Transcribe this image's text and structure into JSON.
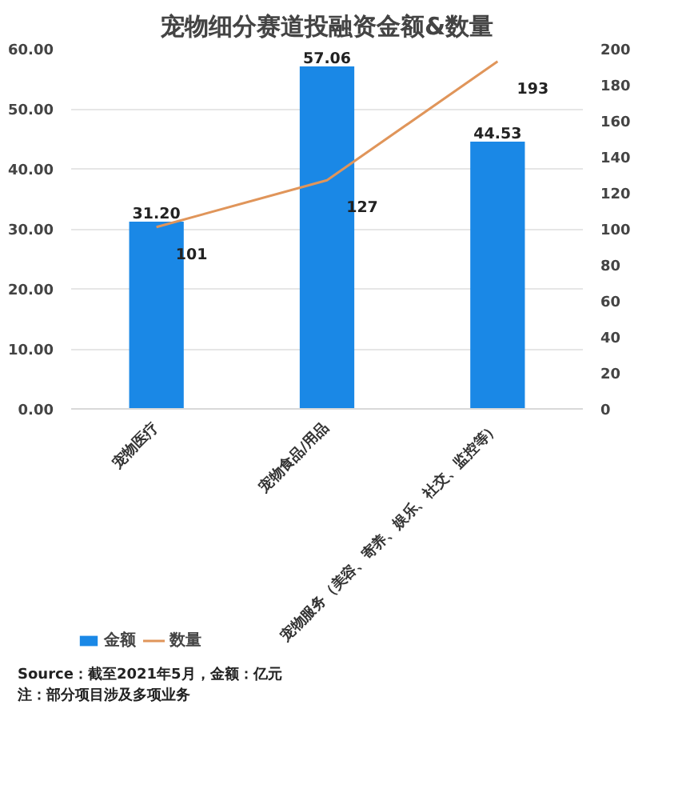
{
  "chart_data": {
    "type": "bar",
    "title": "宠物细分赛道投融资金额&数量",
    "categories": [
      "宠物医疗",
      "宠物食品/用品",
      "宠物服务（美容、寄养、娱乐、社交、监控等）"
    ],
    "series": [
      {
        "name": "金额",
        "color": "#1a88e6",
        "values": [
          31.2,
          57.06,
          44.53
        ],
        "value_labels": [
          "31.20",
          "57.06",
          "44.53"
        ]
      },
      {
        "name": "数量",
        "type": "line",
        "axis": "y2",
        "color": "#e0955a",
        "values": [
          101,
          127,
          193
        ],
        "value_labels": [
          "101",
          "127",
          "193"
        ]
      }
    ],
    "ylim": [
      0,
      60
    ],
    "yticks": [
      {
        "value": 0,
        "label": "0.00"
      },
      {
        "value": 10,
        "label": "10.00"
      },
      {
        "value": 20,
        "label": "20.00"
      },
      {
        "value": 30,
        "label": "30.00"
      },
      {
        "value": 40,
        "label": "40.00"
      },
      {
        "value": 50,
        "label": "50.00"
      },
      {
        "value": 60,
        "label": "60.00"
      }
    ],
    "y2lim": [
      0,
      200
    ],
    "y2ticks": [
      0,
      20,
      40,
      60,
      80,
      100,
      120,
      140,
      160,
      180,
      200
    ],
    "grid": "y",
    "legend": "bottom left",
    "annotations": [
      "Source：截至2021年5月，金额：亿元",
      "注：部分项目涉及多项业务"
    ]
  }
}
